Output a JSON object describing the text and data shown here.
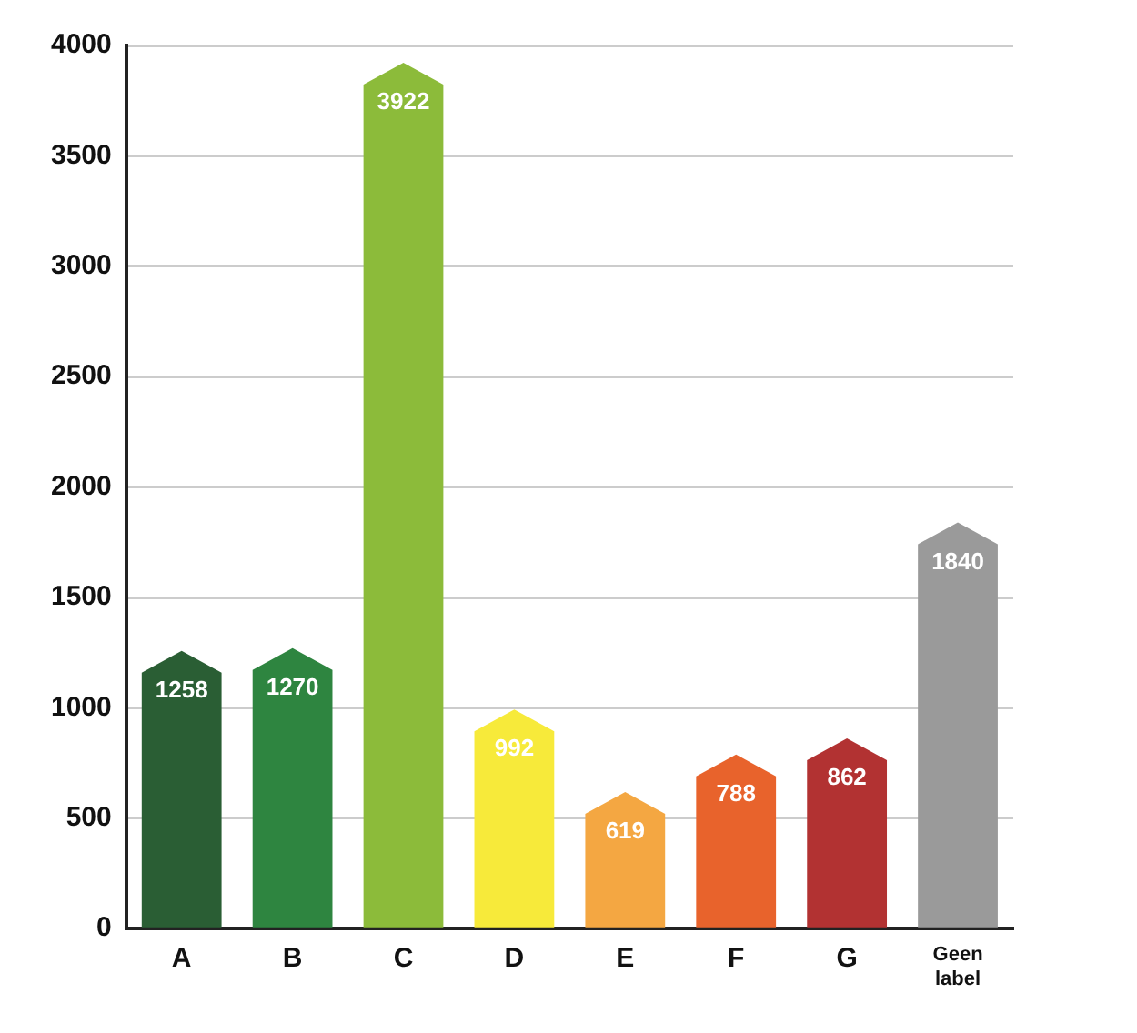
{
  "chart_data": {
    "type": "bar",
    "categories": [
      "A",
      "B",
      "C",
      "D",
      "E",
      "F",
      "G",
      "Geen label"
    ],
    "values": [
      1258,
      1270,
      3922,
      992,
      619,
      788,
      862,
      1840
    ],
    "colors": [
      "#2a5e34",
      "#2e8540",
      "#8cbb3a",
      "#f7ea3a",
      "#f4a742",
      "#e8632c",
      "#b23232",
      "#9a9a9a"
    ],
    "ylim": [
      0,
      4000
    ],
    "yticks": [
      0,
      500,
      1000,
      1500,
      2000,
      2500,
      3000,
      3500,
      4000
    ],
    "grid": "y",
    "legend": false,
    "data_labels": true
  }
}
